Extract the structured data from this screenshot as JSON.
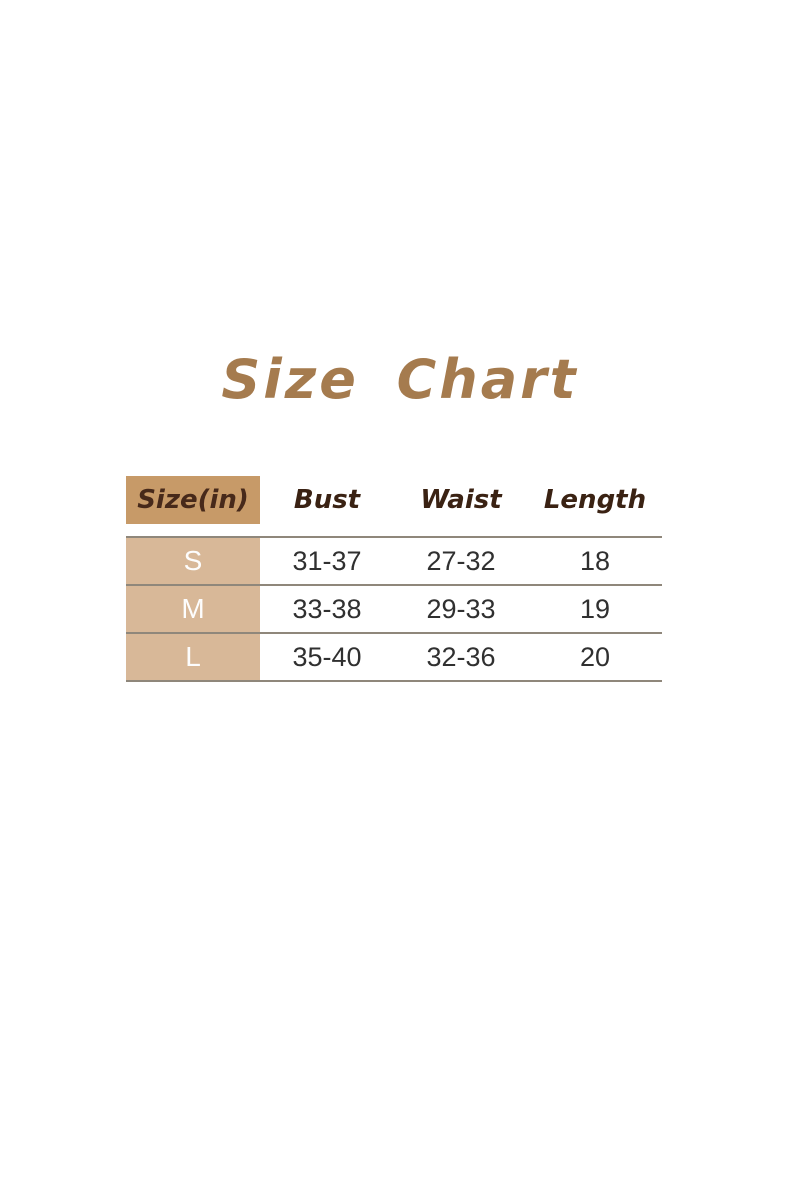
{
  "colors": {
    "page_background": "#ffffff",
    "title_text": "#a57b4e",
    "header_cell_background": "#c79a68",
    "header_cell_text": "#47291a",
    "header_text": "#3a2213",
    "row_label_background": "#d8b898",
    "row_label_text": "#fdfdfd",
    "data_text": "#303030",
    "divider_line": "#8f877b"
  },
  "chart_data": {
    "type": "table",
    "title": "Size Chart",
    "unit_note": "inches",
    "columns": [
      "Size(in)",
      "Bust",
      "Waist",
      "Length"
    ],
    "rows": [
      [
        "S",
        "31-37",
        "27-32",
        "18"
      ],
      [
        "M",
        "33-38",
        "29-33",
        "19"
      ],
      [
        "L",
        "35-40",
        "32-36",
        "20"
      ]
    ]
  }
}
